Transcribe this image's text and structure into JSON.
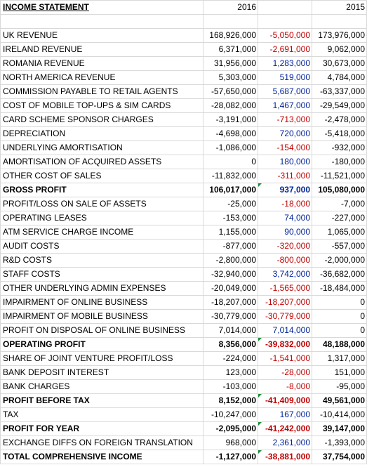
{
  "header": {
    "title": "INCOME STATEMENT",
    "year_a": "2016",
    "year_b": "2015"
  },
  "colors": {
    "negative_change": "#c00000",
    "positive_change": "#002299",
    "flag_marker": "#1e8c3a"
  },
  "rows": [
    {
      "label": "UK REVENUE",
      "y2016": "168,926,000",
      "change": "-5,050,000",
      "y2015": "173,976,000"
    },
    {
      "label": "IRELAND REVENUE",
      "y2016": "6,371,000",
      "change": "-2,691,000",
      "y2015": "9,062,000"
    },
    {
      "label": "ROMANIA REVENUE",
      "y2016": "31,956,000",
      "change": "1,283,000",
      "y2015": "30,673,000"
    },
    {
      "label": "NORTH AMERICA REVENUE",
      "y2016": "5,303,000",
      "change": "519,000",
      "y2015": "4,784,000"
    },
    {
      "label": "COMMISSION PAYABLE TO RETAIL AGENTS",
      "y2016": "-57,650,000",
      "change": "5,687,000",
      "y2015": "-63,337,000"
    },
    {
      "label": "COST OF MOBILE TOP-UPS & SIM CARDS",
      "y2016": "-28,082,000",
      "change": "1,467,000",
      "y2015": "-29,549,000"
    },
    {
      "label": "CARD SCHEME SPONSOR CHARGES",
      "y2016": "-3,191,000",
      "change": "-713,000",
      "y2015": "-2,478,000"
    },
    {
      "label": "DEPRECIATION",
      "y2016": "-4,698,000",
      "change": "720,000",
      "y2015": "-5,418,000"
    },
    {
      "label": "UNDERLYING AMORTISATION",
      "y2016": "-1,086,000",
      "change": "-154,000",
      "y2015": "-932,000"
    },
    {
      "label": "AMORTISATION OF ACQUIRED ASSETS",
      "y2016": "0",
      "change": "180,000",
      "y2015": "-180,000"
    },
    {
      "label": "OTHER COST OF SALES",
      "y2016": "-11,832,000",
      "change": "-311,000",
      "y2015": "-11,521,000"
    },
    {
      "label": "GROSS PROFIT",
      "y2016": "106,017,000",
      "change": "937,000",
      "y2015": "105,080,000"
    },
    {
      "label": "PROFIT/LOSS ON SALE OF ASSETS",
      "y2016": "-25,000",
      "change": "-18,000",
      "y2015": "-7,000"
    },
    {
      "label": "OPERATING LEASES",
      "y2016": "-153,000",
      "change": "74,000",
      "y2015": "-227,000"
    },
    {
      "label": "ATM SERVICE CHARGE INCOME",
      "y2016": "1,155,000",
      "change": "90,000",
      "y2015": "1,065,000"
    },
    {
      "label": "AUDIT COSTS",
      "y2016": "-877,000",
      "change": "-320,000",
      "y2015": "-557,000"
    },
    {
      "label": "R&D COSTS",
      "y2016": "-2,800,000",
      "change": "-800,000",
      "y2015": "-2,000,000"
    },
    {
      "label": "STAFF COSTS",
      "y2016": "-32,940,000",
      "change": "3,742,000",
      "y2015": "-36,682,000"
    },
    {
      "label": "OTHER UNDERLYING ADMIN EXPENSES",
      "y2016": "-20,049,000",
      "change": "-1,565,000",
      "y2015": "-18,484,000"
    },
    {
      "label": "IMPAIRMENT OF ONLINE BUSINESS",
      "y2016": "-18,207,000",
      "change": "-18,207,000",
      "y2015": "0"
    },
    {
      "label": "IMPAIRMENT OF MOBILE BUSINESS",
      "y2016": "-30,779,000",
      "change": "-30,779,000",
      "y2015": "0"
    },
    {
      "label": "PROFIT ON DISPOSAL OF ONLINE BUSINESS",
      "y2016": "7,014,000",
      "change": "7,014,000",
      "y2015": "0"
    },
    {
      "label": "OPERATING PROFIT",
      "y2016": "8,356,000",
      "change": "-39,832,000",
      "y2015": "48,188,000"
    },
    {
      "label": "SHARE OF JOINT VENTURE PROFIT/LOSS",
      "y2016": "-224,000",
      "change": "-1,541,000",
      "y2015": "1,317,000"
    },
    {
      "label": "BANK DEPOSIT INTEREST",
      "y2016": "123,000",
      "change": "-28,000",
      "y2015": "151,000"
    },
    {
      "label": "BANK CHARGES",
      "y2016": "-103,000",
      "change": "-8,000",
      "y2015": "-95,000"
    },
    {
      "label": "PROFIT BEFORE TAX",
      "y2016": "8,152,000",
      "change": "-41,409,000",
      "y2015": "49,561,000"
    },
    {
      "label": "TAX",
      "y2016": "-10,247,000",
      "change": "167,000",
      "y2015": "-10,414,000"
    },
    {
      "label": "PROFIT FOR YEAR",
      "y2016": "-2,095,000",
      "change": "-41,242,000",
      "y2015": "39,147,000"
    },
    {
      "label": "EXCHANGE DIFFS ON FOREIGN TRANSLATION",
      "y2016": "968,000",
      "change": "2,361,000",
      "y2015": "-1,393,000"
    },
    {
      "label": "TOTAL COMPREHENSIVE INCOME",
      "y2016": "-1,127,000",
      "change": "-38,881,000",
      "y2015": "37,754,000"
    }
  ]
}
